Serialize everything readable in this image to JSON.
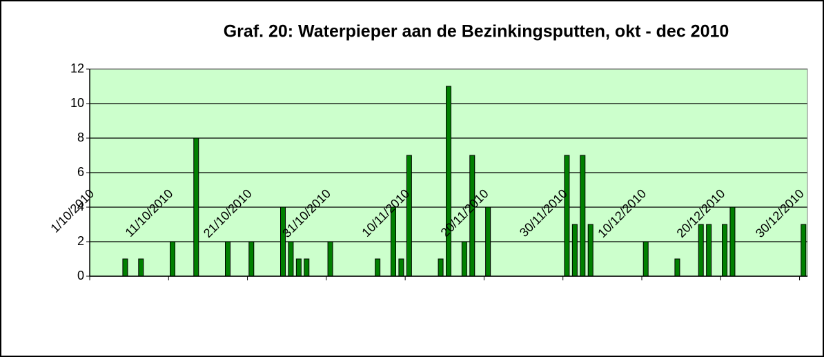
{
  "chart_data": {
    "type": "bar",
    "title": "Graf. 20: Waterpieper aan de Bezinkingsputten, okt - dec 2010",
    "categories": [
      "1/10/2010",
      null,
      null,
      null,
      null,
      null,
      null,
      null,
      null,
      null,
      "11/10/2010",
      null,
      null,
      null,
      null,
      null,
      null,
      null,
      null,
      null,
      "21/10/2010",
      null,
      null,
      null,
      null,
      null,
      null,
      null,
      null,
      null,
      "31/10/2010",
      null,
      null,
      null,
      null,
      null,
      null,
      null,
      null,
      null,
      "10/11/2010",
      null,
      null,
      null,
      null,
      null,
      null,
      null,
      null,
      null,
      "20/11/2010",
      null,
      null,
      null,
      null,
      null,
      null,
      null,
      null,
      null,
      "30/11/2010",
      null,
      null,
      null,
      null,
      null,
      null,
      null,
      null,
      null,
      "10/12/2010",
      null,
      null,
      null,
      null,
      null,
      null,
      null,
      null,
      null,
      "20/12/2010",
      null,
      null,
      null,
      null,
      null,
      null,
      null,
      null,
      null,
      "30/12/2010"
    ],
    "values": [
      0,
      0,
      0,
      0,
      1,
      0,
      1,
      0,
      0,
      0,
      2,
      0,
      0,
      8,
      0,
      0,
      0,
      2,
      0,
      0,
      2,
      0,
      0,
      0,
      4,
      2,
      1,
      1,
      0,
      0,
      2,
      0,
      0,
      0,
      0,
      0,
      1,
      0,
      4,
      1,
      7,
      0,
      0,
      0,
      1,
      11,
      0,
      2,
      7,
      0,
      4,
      0,
      0,
      0,
      0,
      0,
      0,
      0,
      0,
      0,
      7,
      3,
      7,
      3,
      0,
      0,
      0,
      0,
      0,
      0,
      2,
      0,
      0,
      0,
      1,
      0,
      0,
      3,
      3,
      0,
      3,
      4,
      0,
      0,
      0,
      0,
      0,
      0,
      0,
      0,
      3
    ],
    "color": "#008000",
    "ylim": [
      0,
      12
    ],
    "yticks": [
      0,
      2,
      4,
      6,
      8,
      10,
      12
    ],
    "grid": true
  }
}
